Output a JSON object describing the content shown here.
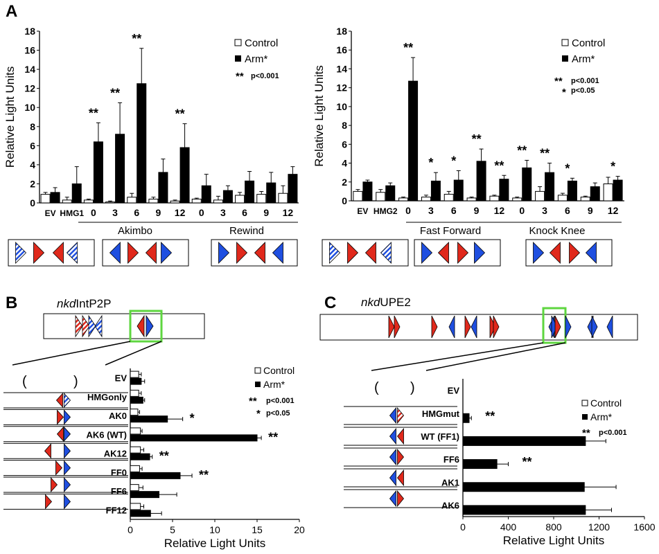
{
  "legend": {
    "control": "Control",
    "arm": "Arm*"
  },
  "colors": {
    "control": "#ffffff",
    "arm": "#000000",
    "red_site": "#e0291c",
    "blue_site": "#1f4fe0",
    "highlight_box": "#5ed63f"
  },
  "panels": {
    "A": {
      "letter": "A",
      "sig_double": "**",
      "p_double": "p<0.001",
      "sig_single": "*",
      "p_single": "p<0.05",
      "group1": "Akimbo",
      "group2": "Rewind",
      "group3": "Fast Forward",
      "group4": "Knock Knee"
    },
    "B": {
      "letter": "B",
      "construct_italic": "nkd",
      "construct_rest": "IntP2P",
      "sig_double": "**",
      "p_double": "p<0.001",
      "sig_single": "*",
      "p_single": "p<0.05"
    },
    "C": {
      "letter": "C",
      "construct_italic": "nkd",
      "construct_rest": "UPE2",
      "sig_double": "**",
      "p_double": "p<0.001"
    }
  },
  "chart_data": [
    {
      "id": "A-left",
      "type": "bar",
      "ylabel": "Relative Light Units",
      "ylim": [
        0,
        18
      ],
      "yticks": [
        0,
        2,
        4,
        6,
        8,
        10,
        12,
        14,
        16,
        18
      ],
      "categories": [
        "EV",
        "HMG1",
        "0",
        "3",
        "6",
        "9",
        "12",
        "0",
        "3",
        "6",
        "9",
        "12"
      ],
      "series": [
        {
          "name": "Control",
          "values": [
            0.9,
            0.3,
            0.3,
            0.1,
            0.6,
            0.4,
            0.2,
            0.4,
            0.3,
            0.8,
            0.9,
            1.0
          ],
          "errors": [
            0.2,
            0.3,
            0.1,
            0.1,
            0.4,
            0.2,
            0.1,
            0.1,
            0.4,
            0.3,
            0.3,
            0.8
          ]
        },
        {
          "name": "Arm*",
          "values": [
            1.1,
            2.0,
            6.4,
            7.2,
            12.5,
            3.2,
            5.8,
            1.8,
            1.3,
            2.3,
            2.1,
            3.0
          ],
          "errors": [
            0.5,
            1.8,
            2.0,
            3.3,
            3.7,
            1.4,
            2.5,
            1.2,
            0.5,
            1.0,
            1.1,
            0.8
          ]
        }
      ],
      "annotations": [
        "",
        "",
        "**",
        "**",
        "**",
        "",
        "**",
        "",
        "",
        "",
        "",
        ""
      ]
    },
    {
      "id": "A-right",
      "type": "bar",
      "ylabel": "Relative Light Units",
      "ylim": [
        0,
        18
      ],
      "yticks": [
        0,
        2,
        4,
        6,
        8,
        10,
        12,
        14,
        16,
        18
      ],
      "categories": [
        "EV",
        "HMG2",
        "0",
        "3",
        "6",
        "9",
        "12",
        "0",
        "3",
        "6",
        "9",
        "12"
      ],
      "series": [
        {
          "name": "Control",
          "values": [
            1.0,
            0.9,
            0.3,
            0.4,
            0.7,
            0.3,
            0.5,
            0.3,
            1.0,
            0.6,
            0.4,
            1.8
          ],
          "errors": [
            0.2,
            0.3,
            0.1,
            0.2,
            0.3,
            0.1,
            0.1,
            0.1,
            0.5,
            0.2,
            0.1,
            0.7
          ]
        },
        {
          "name": "Arm*",
          "values": [
            2.0,
            1.6,
            12.7,
            2.1,
            2.2,
            4.2,
            2.3,
            3.5,
            3.0,
            2.1,
            1.5,
            2.2
          ],
          "errors": [
            0.2,
            0.3,
            2.5,
            0.9,
            1.0,
            1.3,
            0.4,
            0.8,
            1.0,
            0.3,
            0.4,
            0.4
          ]
        }
      ],
      "annotations": [
        "",
        "",
        "**",
        "*",
        "*",
        "**",
        "**",
        "**",
        "**",
        "*",
        "",
        "*"
      ]
    },
    {
      "id": "B",
      "type": "bar",
      "orientation": "horizontal",
      "xlabel": "Relative Light Units",
      "xlim": [
        0,
        20
      ],
      "xticks": [
        0,
        5,
        10,
        15,
        20
      ],
      "categories": [
        "EV",
        "HMGonly",
        "AK0",
        "AK6 (WT)",
        "AK12",
        "FF0",
        "FF6",
        "FF12"
      ],
      "series": [
        {
          "name": "Control",
          "values": [
            1.0,
            1.0,
            0.9,
            1.2,
            1.2,
            1.1,
            1.0,
            1.2
          ],
          "errors": [
            0.3,
            0.3,
            0.2,
            0.2,
            0.4,
            0.3,
            0.5,
            0.4
          ]
        },
        {
          "name": "Arm*",
          "values": [
            1.3,
            1.5,
            4.4,
            15.0,
            2.3,
            5.9,
            3.4,
            2.4
          ],
          "errors": [
            0.4,
            0.2,
            1.8,
            0.5,
            0.3,
            1.4,
            2.1,
            1.3
          ]
        }
      ],
      "annotations": [
        "",
        "",
        "*",
        "**",
        "**",
        "**",
        "",
        ""
      ]
    },
    {
      "id": "C",
      "type": "bar",
      "orientation": "horizontal",
      "xlabel": "Relative Light Units",
      "xlim": [
        0,
        1600
      ],
      "xticks": [
        0,
        400,
        800,
        1200,
        1600
      ],
      "categories": [
        "EV",
        "HMGmut",
        "WT (FF1)",
        "FF6",
        "AK1",
        "AK6"
      ],
      "series": [
        {
          "name": "Control",
          "values": [
            0,
            0,
            0,
            0,
            0,
            0
          ],
          "errors": [
            0,
            0,
            0,
            0,
            0,
            0
          ]
        },
        {
          "name": "Arm*",
          "values": [
            0,
            55,
            1080,
            300,
            1070,
            1080
          ],
          "errors": [
            0,
            20,
            180,
            100,
            280,
            230
          ]
        }
      ],
      "annotations": [
        "",
        "**",
        "",
        "**",
        "",
        ""
      ]
    }
  ]
}
